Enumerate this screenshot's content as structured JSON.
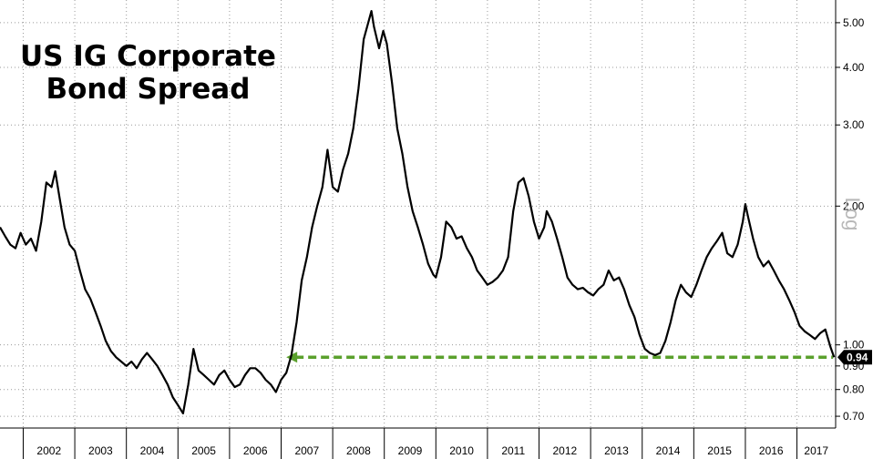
{
  "chart_data": {
    "type": "line",
    "title_lines": [
      "US IG Corporate",
      "Bond Spread"
    ],
    "yscale": "log",
    "yaxis_label": "Log",
    "ylim": [
      0.66,
      5.6
    ],
    "y_ticks": [
      {
        "value": 5.0,
        "label": "5.00"
      },
      {
        "value": 4.0,
        "label": "4.00"
      },
      {
        "value": 3.0,
        "label": "3.00"
      },
      {
        "value": 2.0,
        "label": "2.00"
      },
      {
        "value": 1.0,
        "label": "1.00"
      },
      {
        "value": 0.9,
        "label": "0.90"
      },
      {
        "value": 0.8,
        "label": "0.80"
      },
      {
        "value": 0.7,
        "label": "0.70"
      }
    ],
    "x_range": [
      2001.55,
      2017.75
    ],
    "x_ticks": [
      "2002",
      "2003",
      "2004",
      "2005",
      "2006",
      "2007",
      "2008",
      "2009",
      "2010",
      "2011",
      "2012",
      "2013",
      "2014",
      "2015",
      "2016",
      "2017"
    ],
    "grid": true,
    "last_value_label": "0.94",
    "reference_line": {
      "value": 0.94,
      "from_x": 2007.1,
      "to_x": 2017.7,
      "color": "#5aa02c",
      "style": "dashed"
    },
    "series": [
      {
        "color": "#000000",
        "points": [
          [
            2001.55,
            1.8
          ],
          [
            2001.65,
            1.72
          ],
          [
            2001.75,
            1.65
          ],
          [
            2001.85,
            1.62
          ],
          [
            2001.95,
            1.75
          ],
          [
            2002.05,
            1.65
          ],
          [
            2002.15,
            1.7
          ],
          [
            2002.25,
            1.6
          ],
          [
            2002.35,
            1.85
          ],
          [
            2002.45,
            2.25
          ],
          [
            2002.55,
            2.2
          ],
          [
            2002.62,
            2.38
          ],
          [
            2002.7,
            2.1
          ],
          [
            2002.8,
            1.8
          ],
          [
            2002.9,
            1.65
          ],
          [
            2003.0,
            1.6
          ],
          [
            2003.1,
            1.45
          ],
          [
            2003.2,
            1.32
          ],
          [
            2003.3,
            1.26
          ],
          [
            2003.4,
            1.18
          ],
          [
            2003.5,
            1.1
          ],
          [
            2003.6,
            1.02
          ],
          [
            2003.7,
            0.97
          ],
          [
            2003.8,
            0.94
          ],
          [
            2003.9,
            0.92
          ],
          [
            2004.0,
            0.9
          ],
          [
            2004.1,
            0.92
          ],
          [
            2004.2,
            0.89
          ],
          [
            2004.3,
            0.93
          ],
          [
            2004.4,
            0.96
          ],
          [
            2004.5,
            0.93
          ],
          [
            2004.6,
            0.9
          ],
          [
            2004.7,
            0.86
          ],
          [
            2004.8,
            0.82
          ],
          [
            2004.9,
            0.77
          ],
          [
            2005.0,
            0.74
          ],
          [
            2005.1,
            0.71
          ],
          [
            2005.2,
            0.82
          ],
          [
            2005.3,
            0.98
          ],
          [
            2005.4,
            0.88
          ],
          [
            2005.5,
            0.86
          ],
          [
            2005.6,
            0.84
          ],
          [
            2005.7,
            0.82
          ],
          [
            2005.8,
            0.86
          ],
          [
            2005.9,
            0.88
          ],
          [
            2006.0,
            0.84
          ],
          [
            2006.1,
            0.81
          ],
          [
            2006.2,
            0.82
          ],
          [
            2006.3,
            0.86
          ],
          [
            2006.4,
            0.89
          ],
          [
            2006.5,
            0.89
          ],
          [
            2006.6,
            0.87
          ],
          [
            2006.7,
            0.84
          ],
          [
            2006.8,
            0.82
          ],
          [
            2006.9,
            0.79
          ],
          [
            2007.0,
            0.84
          ],
          [
            2007.1,
            0.87
          ],
          [
            2007.2,
            0.95
          ],
          [
            2007.3,
            1.12
          ],
          [
            2007.4,
            1.38
          ],
          [
            2007.5,
            1.55
          ],
          [
            2007.6,
            1.8
          ],
          [
            2007.7,
            2.0
          ],
          [
            2007.8,
            2.2
          ],
          [
            2007.9,
            2.65
          ],
          [
            2008.0,
            2.2
          ],
          [
            2008.1,
            2.15
          ],
          [
            2008.2,
            2.4
          ],
          [
            2008.3,
            2.6
          ],
          [
            2008.4,
            2.95
          ],
          [
            2008.5,
            3.6
          ],
          [
            2008.6,
            4.6
          ],
          [
            2008.7,
            5.05
          ],
          [
            2008.75,
            5.3
          ],
          [
            2008.8,
            4.9
          ],
          [
            2008.9,
            4.4
          ],
          [
            2008.98,
            4.8
          ],
          [
            2009.05,
            4.5
          ],
          [
            2009.15,
            3.7
          ],
          [
            2009.25,
            2.95
          ],
          [
            2009.35,
            2.6
          ],
          [
            2009.45,
            2.2
          ],
          [
            2009.55,
            1.95
          ],
          [
            2009.65,
            1.8
          ],
          [
            2009.75,
            1.65
          ],
          [
            2009.85,
            1.5
          ],
          [
            2009.95,
            1.42
          ],
          [
            2010.0,
            1.4
          ],
          [
            2010.1,
            1.55
          ],
          [
            2010.2,
            1.85
          ],
          [
            2010.3,
            1.8
          ],
          [
            2010.4,
            1.7
          ],
          [
            2010.5,
            1.72
          ],
          [
            2010.6,
            1.62
          ],
          [
            2010.7,
            1.55
          ],
          [
            2010.8,
            1.45
          ],
          [
            2010.9,
            1.4
          ],
          [
            2011.0,
            1.35
          ],
          [
            2011.1,
            1.37
          ],
          [
            2011.2,
            1.4
          ],
          [
            2011.3,
            1.45
          ],
          [
            2011.4,
            1.55
          ],
          [
            2011.5,
            1.95
          ],
          [
            2011.6,
            2.25
          ],
          [
            2011.7,
            2.3
          ],
          [
            2011.8,
            2.1
          ],
          [
            2011.9,
            1.85
          ],
          [
            2012.0,
            1.7
          ],
          [
            2012.1,
            1.8
          ],
          [
            2012.15,
            1.95
          ],
          [
            2012.25,
            1.85
          ],
          [
            2012.35,
            1.7
          ],
          [
            2012.45,
            1.55
          ],
          [
            2012.55,
            1.4
          ],
          [
            2012.65,
            1.35
          ],
          [
            2012.75,
            1.32
          ],
          [
            2012.85,
            1.33
          ],
          [
            2012.95,
            1.3
          ],
          [
            2013.05,
            1.28
          ],
          [
            2013.15,
            1.32
          ],
          [
            2013.25,
            1.35
          ],
          [
            2013.35,
            1.45
          ],
          [
            2013.45,
            1.38
          ],
          [
            2013.55,
            1.4
          ],
          [
            2013.65,
            1.32
          ],
          [
            2013.75,
            1.22
          ],
          [
            2013.85,
            1.15
          ],
          [
            2013.95,
            1.05
          ],
          [
            2014.05,
            0.98
          ],
          [
            2014.15,
            0.96
          ],
          [
            2014.25,
            0.95
          ],
          [
            2014.35,
            0.96
          ],
          [
            2014.45,
            1.02
          ],
          [
            2014.55,
            1.12
          ],
          [
            2014.65,
            1.25
          ],
          [
            2014.75,
            1.35
          ],
          [
            2014.85,
            1.3
          ],
          [
            2014.95,
            1.27
          ],
          [
            2015.05,
            1.35
          ],
          [
            2015.15,
            1.45
          ],
          [
            2015.25,
            1.55
          ],
          [
            2015.35,
            1.62
          ],
          [
            2015.45,
            1.68
          ],
          [
            2015.55,
            1.75
          ],
          [
            2015.65,
            1.58
          ],
          [
            2015.75,
            1.55
          ],
          [
            2015.85,
            1.65
          ],
          [
            2015.95,
            1.85
          ],
          [
            2016.0,
            2.02
          ],
          [
            2016.05,
            1.9
          ],
          [
            2016.15,
            1.7
          ],
          [
            2016.25,
            1.55
          ],
          [
            2016.35,
            1.48
          ],
          [
            2016.45,
            1.52
          ],
          [
            2016.55,
            1.45
          ],
          [
            2016.65,
            1.38
          ],
          [
            2016.75,
            1.32
          ],
          [
            2016.85,
            1.25
          ],
          [
            2016.95,
            1.18
          ],
          [
            2017.05,
            1.1
          ],
          [
            2017.15,
            1.07
          ],
          [
            2017.25,
            1.05
          ],
          [
            2017.35,
            1.03
          ],
          [
            2017.45,
            1.06
          ],
          [
            2017.55,
            1.08
          ],
          [
            2017.65,
            0.99
          ],
          [
            2017.72,
            0.94
          ]
        ]
      }
    ]
  }
}
